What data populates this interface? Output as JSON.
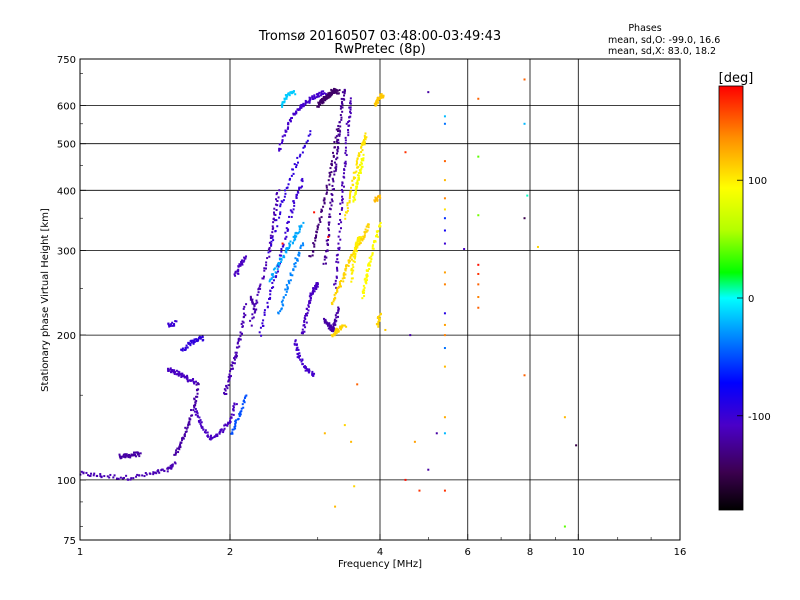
{
  "chart_data": {
    "type": "scatter",
    "title": "Tromsø 20160507 03:48:00-03:49:43",
    "subtitle": "RwPretec (8p)",
    "xlabel": "Frequency [MHz]",
    "ylabel": "Stationary phase Virtual Height [km]",
    "x_scale": "log",
    "y_scale": "log",
    "xlim": [
      1,
      16
    ],
    "ylim": [
      75,
      750
    ],
    "x_ticks": [
      1,
      2,
      4,
      6,
      8,
      10,
      16
    ],
    "x_tick_labels": [
      "1",
      "2",
      "4",
      "6",
      "8",
      "10",
      "16"
    ],
    "x_grid": [
      2,
      4,
      6,
      8,
      10
    ],
    "y_ticks": [
      75,
      100,
      200,
      300,
      400,
      500,
      600,
      750
    ],
    "y_tick_labels": [
      "75",
      "100",
      "200",
      "300",
      "400",
      "500",
      "600",
      "750"
    ],
    "y_grid": [
      100,
      200,
      300,
      400,
      500,
      600
    ],
    "grid": true,
    "stats": {
      "title": "Phases",
      "line_o": "mean, sd,O: -99.0, 16.6",
      "line_x": "mean, sd,X:  83.0, 18.2"
    },
    "colorbar": {
      "label": "[deg]",
      "range": [
        -180,
        180
      ],
      "ticks": [
        100,
        0,
        -100
      ],
      "tick_labels": [
        "100",
        "0",
        "-100"
      ]
    },
    "traces": [
      {
        "x": [
          1.0,
          1.1,
          1.25,
          1.4,
          1.5,
          1.55
        ],
        "y": [
          103,
          102,
          101,
          103,
          105,
          108
        ],
        "phase": -115
      },
      {
        "x": [
          1.2,
          1.24,
          1.28,
          1.32
        ],
        "y": [
          112,
          112,
          113,
          113
        ],
        "phase": -120
      },
      {
        "x": [
          1.55,
          1.6,
          1.65,
          1.7,
          1.73
        ],
        "y": [
          112,
          120,
          130,
          145,
          160
        ],
        "phase": -120
      },
      {
        "x": [
          1.5,
          1.55,
          1.6,
          1.65,
          1.7
        ],
        "y": [
          170,
          168,
          165,
          162,
          160
        ],
        "phase": -110
      },
      {
        "x": [
          1.5,
          1.56
        ],
        "y": [
          210,
          212
        ],
        "phase": -100
      },
      {
        "x": [
          1.6,
          1.66,
          1.72,
          1.76
        ],
        "y": [
          185,
          192,
          196,
          197
        ],
        "phase": -95
      },
      {
        "x": [
          1.7,
          1.75,
          1.82,
          1.9,
          2.0,
          2.06
        ],
        "y": [
          140,
          130,
          122,
          125,
          132,
          145
        ],
        "phase": -110
      },
      {
        "x": [
          1.95,
          2.0,
          2.05,
          2.1,
          2.15
        ],
        "y": [
          150,
          165,
          180,
          200,
          230
        ],
        "phase": -115
      },
      {
        "x": [
          2.02,
          2.08,
          2.15
        ],
        "y": [
          125,
          135,
          150
        ],
        "phase": -50
      },
      {
        "x": [
          2.05,
          2.1,
          2.15
        ],
        "y": [
          265,
          280,
          290
        ],
        "phase": -110
      },
      {
        "x": [
          2.2,
          2.25
        ],
        "y": [
          240,
          225
        ],
        "phase": -120
      },
      {
        "x": [
          2.2,
          2.3,
          2.4,
          2.45,
          2.5
        ],
        "y": [
          210,
          250,
          300,
          350,
          400
        ],
        "phase": -115
      },
      {
        "x": [
          2.3,
          2.4,
          2.5,
          2.6,
          2.7,
          2.8
        ],
        "y": [
          200,
          240,
          280,
          330,
          380,
          420
        ],
        "phase": -100
      },
      {
        "x": [
          2.4,
          2.55,
          2.7,
          2.9
        ],
        "y": [
          300,
          380,
          450,
          530
        ],
        "phase": -95
      },
      {
        "x": [
          2.5,
          2.6,
          2.7,
          2.8,
          2.9,
          3.0,
          3.1
        ],
        "y": [
          480,
          540,
          580,
          600,
          620,
          630,
          640
        ],
        "phase": -105
      },
      {
        "x": [
          2.4,
          2.5,
          2.6,
          2.7,
          2.8
        ],
        "y": [
          260,
          280,
          300,
          320,
          340
        ],
        "phase": -25
      },
      {
        "x": [
          2.5,
          2.6,
          2.7,
          2.8
        ],
        "y": [
          220,
          250,
          280,
          310
        ],
        "phase": -35
      },
      {
        "x": [
          2.55,
          2.6,
          2.7
        ],
        "y": [
          600,
          630,
          640
        ],
        "phase": -15
      },
      {
        "x": [
          2.7,
          2.75,
          2.85,
          2.95
        ],
        "y": [
          195,
          180,
          170,
          165
        ],
        "phase": -105
      },
      {
        "x": [
          2.8,
          2.85,
          2.9,
          2.95,
          3.0
        ],
        "y": [
          200,
          220,
          240,
          250,
          255
        ],
        "phase": -110
      },
      {
        "x": [
          2.9,
          3.0,
          3.1,
          3.2,
          3.3
        ],
        "y": [
          290,
          330,
          380,
          450,
          540
        ],
        "phase": -135
      },
      {
        "x": [
          3.0,
          3.05,
          3.1,
          3.15,
          3.2,
          3.25,
          3.3
        ],
        "y": [
          600,
          610,
          620,
          630,
          640,
          645,
          640
        ],
        "phase": -140
      },
      {
        "x": [
          3.1,
          3.15,
          3.2,
          3.25,
          3.3,
          3.35,
          3.4
        ],
        "y": [
          280,
          320,
          380,
          450,
          520,
          600,
          650
        ],
        "phase": -125
      },
      {
        "x": [
          3.25,
          3.3,
          3.35,
          3.4,
          3.45,
          3.5
        ],
        "y": [
          250,
          300,
          380,
          450,
          550,
          620
        ],
        "phase": -115
      },
      {
        "x": [
          3.1,
          3.15,
          3.2,
          3.25,
          3.3
        ],
        "y": [
          215,
          210,
          205,
          210,
          230
        ],
        "phase": -120
      },
      {
        "x": [
          3.2,
          3.3,
          3.4,
          3.5,
          3.6,
          3.7,
          3.8
        ],
        "y": [
          230,
          250,
          270,
          290,
          305,
          320,
          340
        ],
        "phase": 110
      },
      {
        "x": [
          3.4,
          3.5,
          3.6,
          3.7,
          3.75
        ],
        "y": [
          350,
          400,
          450,
          500,
          520
        ],
        "phase": 105
      },
      {
        "x": [
          3.5,
          3.55,
          3.6,
          3.65
        ],
        "y": [
          260,
          290,
          310,
          320
        ],
        "phase": 100
      },
      {
        "x": [
          3.55,
          3.6,
          3.65,
          3.7
        ],
        "y": [
          380,
          410,
          440,
          470
        ],
        "phase": 90
      },
      {
        "x": [
          3.7,
          3.75,
          3.8,
          3.9,
          4.0
        ],
        "y": [
          240,
          260,
          280,
          310,
          340
        ],
        "phase": 95
      },
      {
        "x": [
          3.2,
          3.3,
          3.4
        ],
        "y": [
          200,
          205,
          210
        ],
        "phase": 110
      },
      {
        "x": [
          3.9,
          3.95,
          4.0,
          4.05
        ],
        "y": [
          600,
          610,
          625,
          630
        ],
        "phase": 115
      },
      {
        "x": [
          3.95,
          4.0
        ],
        "y": [
          210,
          220
        ],
        "phase": 110
      },
      {
        "x": [
          3.9,
          4.0
        ],
        "y": [
          380,
          390
        ],
        "phase": 120
      }
    ],
    "points": [
      {
        "x": 2.55,
        "y": 310,
        "phase": 175
      },
      {
        "x": 2.95,
        "y": 360,
        "phase": 175
      },
      {
        "x": 3.15,
        "y": 320,
        "phase": 178
      },
      {
        "x": 3.1,
        "y": 125,
        "phase": 120
      },
      {
        "x": 3.25,
        "y": 88,
        "phase": 120
      },
      {
        "x": 3.4,
        "y": 130,
        "phase": 110
      },
      {
        "x": 3.5,
        "y": 120,
        "phase": 120
      },
      {
        "x": 3.55,
        "y": 97,
        "phase": 110
      },
      {
        "x": 3.6,
        "y": 158,
        "phase": 150
      },
      {
        "x": 4.1,
        "y": 205,
        "phase": 115
      },
      {
        "x": 4.5,
        "y": 480,
        "phase": 165
      },
      {
        "x": 4.5,
        "y": 100,
        "phase": 175
      },
      {
        "x": 4.6,
        "y": 200,
        "phase": -120
      },
      {
        "x": 4.7,
        "y": 120,
        "phase": 130
      },
      {
        "x": 4.8,
        "y": 95,
        "phase": 165
      },
      {
        "x": 5.0,
        "y": 640,
        "phase": -120
      },
      {
        "x": 5.0,
        "y": 105,
        "phase": -120
      },
      {
        "x": 5.2,
        "y": 125,
        "phase": -120
      },
      {
        "x": 5.4,
        "y": 570,
        "phase": -20
      },
      {
        "x": 5.4,
        "y": 550,
        "phase": -40
      },
      {
        "x": 5.4,
        "y": 460,
        "phase": 150
      },
      {
        "x": 5.4,
        "y": 420,
        "phase": 120
      },
      {
        "x": 5.4,
        "y": 385,
        "phase": 140
      },
      {
        "x": 5.4,
        "y": 365,
        "phase": 105
      },
      {
        "x": 5.4,
        "y": 350,
        "phase": -60
      },
      {
        "x": 5.4,
        "y": 330,
        "phase": -80
      },
      {
        "x": 5.4,
        "y": 310,
        "phase": -100
      },
      {
        "x": 5.4,
        "y": 270,
        "phase": 130
      },
      {
        "x": 5.4,
        "y": 255,
        "phase": 140
      },
      {
        "x": 5.4,
        "y": 222,
        "phase": -90
      },
      {
        "x": 5.4,
        "y": 210,
        "phase": 130
      },
      {
        "x": 5.4,
        "y": 200,
        "phase": 140
      },
      {
        "x": 5.4,
        "y": 188,
        "phase": -40
      },
      {
        "x": 5.4,
        "y": 172,
        "phase": 120
      },
      {
        "x": 5.4,
        "y": 135,
        "phase": 125
      },
      {
        "x": 5.4,
        "y": 125,
        "phase": -20
      },
      {
        "x": 5.4,
        "y": 95,
        "phase": 165
      },
      {
        "x": 5.9,
        "y": 302,
        "phase": -110
      },
      {
        "x": 6.3,
        "y": 620,
        "phase": 150
      },
      {
        "x": 6.3,
        "y": 470,
        "phase": 40
      },
      {
        "x": 6.3,
        "y": 355,
        "phase": 45
      },
      {
        "x": 6.3,
        "y": 280,
        "phase": 175
      },
      {
        "x": 6.3,
        "y": 268,
        "phase": 165
      },
      {
        "x": 6.3,
        "y": 255,
        "phase": 150
      },
      {
        "x": 6.3,
        "y": 240,
        "phase": 140
      },
      {
        "x": 6.3,
        "y": 228,
        "phase": 150
      },
      {
        "x": 7.8,
        "y": 680,
        "phase": 150
      },
      {
        "x": 7.8,
        "y": 550,
        "phase": -20
      },
      {
        "x": 7.9,
        "y": 390,
        "phase": 5
      },
      {
        "x": 7.8,
        "y": 350,
        "phase": -150
      },
      {
        "x": 7.8,
        "y": 165,
        "phase": 150
      },
      {
        "x": 8.3,
        "y": 305,
        "phase": 110
      },
      {
        "x": 9.4,
        "y": 135,
        "phase": 120
      },
      {
        "x": 9.4,
        "y": 80,
        "phase": 40
      },
      {
        "x": 9.9,
        "y": 118,
        "phase": -150
      }
    ]
  }
}
